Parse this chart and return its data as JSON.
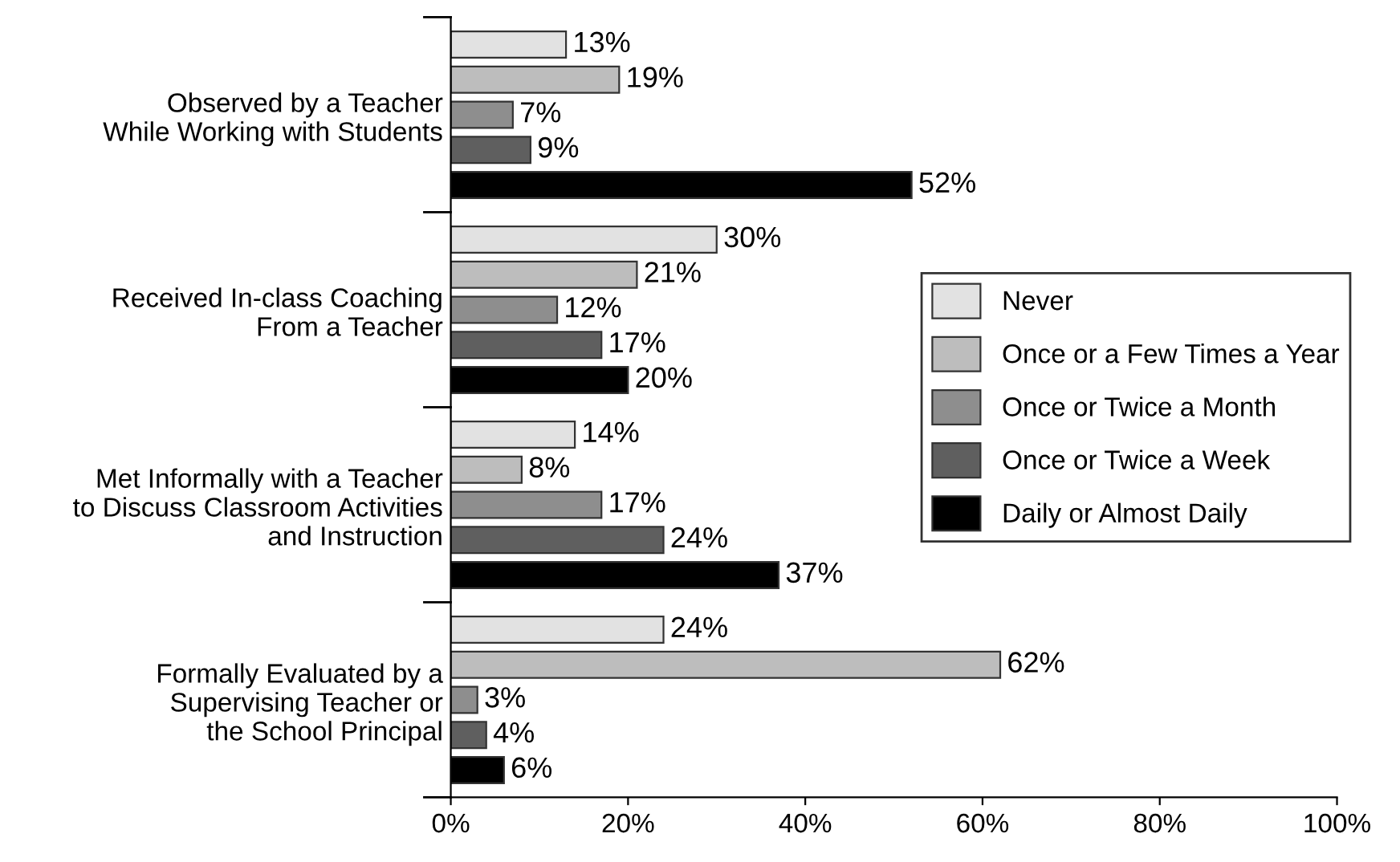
{
  "chart_data": {
    "type": "bar",
    "orientation": "horizontal",
    "categories": [
      "Observed by a Teacher\nWhile Working with Students",
      "Received In-class Coaching\nFrom a Teacher",
      "Met Informally with a Teacher\nto Discuss Classroom Activities\nand Instruction",
      "Formally Evaluated by a\nSupervising Teacher or\nthe School Principal"
    ],
    "series": [
      {
        "name": "Never",
        "color": "#e2e2e2",
        "values": [
          13,
          30,
          14,
          24
        ],
        "value_labels": [
          "13%",
          "30%",
          "14%",
          "24%"
        ]
      },
      {
        "name": "Once or a Few Times a Year",
        "color": "#bdbdbd",
        "values": [
          19,
          21,
          8,
          62
        ],
        "value_labels": [
          "19%",
          "21%",
          "8%",
          "62%"
        ]
      },
      {
        "name": "Once or Twice a Month",
        "color": "#8e8e8e",
        "values": [
          7,
          12,
          17,
          3
        ],
        "value_labels": [
          "7%",
          "12%",
          "17%",
          "3%"
        ]
      },
      {
        "name": "Once or Twice a Week",
        "color": "#5f5f5f",
        "values": [
          9,
          17,
          24,
          4
        ],
        "value_labels": [
          "9%",
          "17%",
          "24%",
          "4%"
        ]
      },
      {
        "name": "Daily or Almost Daily",
        "color": "#000000",
        "values": [
          52,
          20,
          37,
          6
        ],
        "value_labels": [
          "52%",
          "20%",
          "37%",
          "6%"
        ]
      }
    ],
    "xlim": [
      0,
      100
    ],
    "xticks": [
      {
        "value": 0,
        "label": "0%"
      },
      {
        "value": 20,
        "label": "20%"
      },
      {
        "value": 40,
        "label": "40%"
      },
      {
        "value": 60,
        "label": "60%"
      },
      {
        "value": 80,
        "label": "80%"
      },
      {
        "value": 100,
        "label": "100%"
      }
    ],
    "grid": false,
    "legend": "right"
  }
}
